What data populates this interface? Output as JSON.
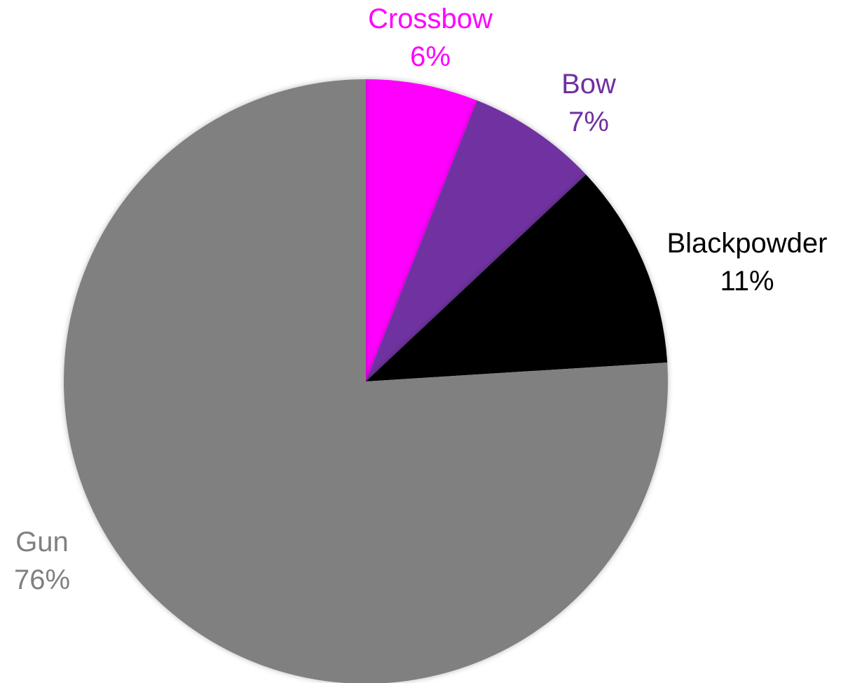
{
  "chart_data": {
    "type": "pie",
    "title": "",
    "start": "12 o'clock",
    "direction": "clockwise",
    "slices": [
      {
        "label": "Crossbow",
        "value": 6,
        "display": "6%",
        "color": "#FF00FF"
      },
      {
        "label": "Bow",
        "value": 7,
        "display": "7%",
        "color": "#7030A0"
      },
      {
        "label": "Blackpowder",
        "value": 11,
        "display": "11%",
        "color": "#000000"
      },
      {
        "label": "Gun",
        "value": 76,
        "display": "76%",
        "color": "#808080"
      }
    ],
    "label_colors": {
      "Crossbow": "#FF00FF",
      "Bow": "#7030A0",
      "Blackpowder": "#000000",
      "Gun": "#808080"
    },
    "legend": "none"
  }
}
